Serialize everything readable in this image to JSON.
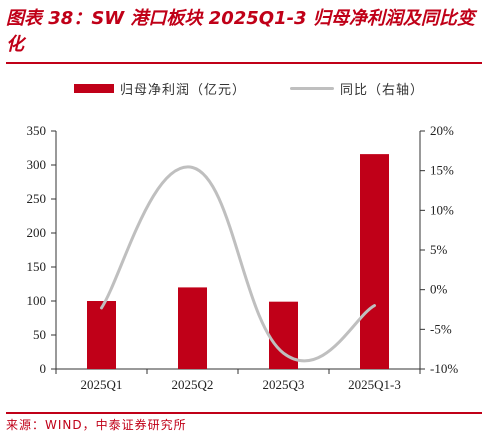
{
  "header": {
    "title": "图表 38：SW 港口板块 2025Q1-3 归母净利润及同比变化"
  },
  "footer": {
    "source": "来源：WIND，中泰证券研究所"
  },
  "colors": {
    "accent": "#c00018",
    "bar": "#c00018",
    "line": "#bfbfbf"
  },
  "chart_data": {
    "type": "bar",
    "categories": [
      "2025Q1",
      "2025Q2",
      "2025Q3",
      "2025Q1-3"
    ],
    "series": [
      {
        "name": "归母净利润（亿元）",
        "type": "bar",
        "axis": "left",
        "values": [
          100,
          120,
          99,
          316
        ]
      },
      {
        "name": "同比（右轴）",
        "type": "line",
        "axis": "right",
        "values": [
          -2.3,
          15.4,
          -8.0,
          -2.0
        ]
      }
    ],
    "y_left": {
      "ylim": [
        0,
        350
      ],
      "ticks": [
        0,
        50,
        100,
        150,
        200,
        250,
        300,
        350
      ]
    },
    "y_right": {
      "ylim": [
        -10,
        20
      ],
      "ticks": [
        "-10%",
        "-5%",
        "0%",
        "5%",
        "10%",
        "15%",
        "20%"
      ]
    },
    "grid": false,
    "legend_position": "top"
  }
}
